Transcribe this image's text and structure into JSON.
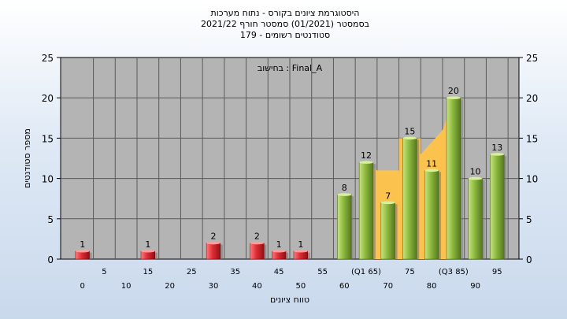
{
  "chart_data": {
    "type": "bar",
    "title_lines": [
      "היסטוגרמת ציונים בקורס - נתוח מערכות",
      "בסמסטר  (01/2021)  סמסטר חורף 2021/22",
      "סטודנטים רשומים - 179"
    ],
    "xlabel": "טווח ציונים",
    "ylabel": "מספר סטודנטים",
    "annotation": "בחישוב : Final_A",
    "ylim": [
      0,
      25
    ],
    "y_ticks": [
      0,
      5,
      10,
      15,
      20,
      25
    ],
    "x_range": [
      -5,
      100
    ],
    "x_tick_labels": [
      {
        "x": 0,
        "label": "0",
        "row": 2
      },
      {
        "x": 5,
        "label": "5",
        "row": 1
      },
      {
        "x": 10,
        "label": "10",
        "row": 2
      },
      {
        "x": 15,
        "label": "15",
        "row": 1
      },
      {
        "x": 20,
        "label": "20",
        "row": 2
      },
      {
        "x": 25,
        "label": "25",
        "row": 1
      },
      {
        "x": 30,
        "label": "30",
        "row": 2
      },
      {
        "x": 35,
        "label": "35",
        "row": 1
      },
      {
        "x": 40,
        "label": "40",
        "row": 2
      },
      {
        "x": 45,
        "label": "45",
        "row": 1
      },
      {
        "x": 50,
        "label": "50",
        "row": 2
      },
      {
        "x": 55,
        "label": "55",
        "row": 1
      },
      {
        "x": 60,
        "label": "60",
        "row": 2
      },
      {
        "x": 65,
        "label": "(Q1 65)",
        "row": 1
      },
      {
        "x": 70,
        "label": "70",
        "row": 2
      },
      {
        "x": 75,
        "label": "75",
        "row": 1
      },
      {
        "x": 80,
        "label": "80",
        "row": 2
      },
      {
        "x": 85,
        "label": "(Q3 85)",
        "row": 1
      },
      {
        "x": 90,
        "label": "90",
        "row": 2
      },
      {
        "x": 95,
        "label": "95",
        "row": 1
      }
    ],
    "bars": [
      {
        "x": 0,
        "value": 1,
        "group": "fail"
      },
      {
        "x": 15,
        "value": 1,
        "group": "fail"
      },
      {
        "x": 30,
        "value": 2,
        "group": "fail"
      },
      {
        "x": 40,
        "value": 2,
        "group": "fail"
      },
      {
        "x": 45,
        "value": 1,
        "group": "fail"
      },
      {
        "x": 50,
        "value": 1,
        "group": "fail"
      },
      {
        "x": 60,
        "value": 8,
        "group": "pass"
      },
      {
        "x": 65,
        "value": 12,
        "group": "pass"
      },
      {
        "x": 70,
        "value": 7,
        "group": "pass"
      },
      {
        "x": 75,
        "value": 15,
        "group": "pass"
      },
      {
        "x": 80,
        "value": 11,
        "group": "pass"
      },
      {
        "x": 85,
        "value": 20,
        "group": "pass"
      },
      {
        "x": 90,
        "value": 10,
        "group": "pass"
      },
      {
        "x": 95,
        "value": 13,
        "group": "pass"
      }
    ],
    "quartile_band": [
      {
        "x": 65,
        "y": 12
      },
      {
        "x": 67.5,
        "y": 11
      },
      {
        "x": 72.5,
        "y": 11
      },
      {
        "x": 72.5,
        "y": 15
      },
      {
        "x": 77.5,
        "y": 15
      },
      {
        "x": 77.5,
        "y": 13
      },
      {
        "x": 82.5,
        "y": 16
      },
      {
        "x": 85,
        "y": 20
      }
    ],
    "grid": true,
    "colors": {
      "plot_bg": "#b4b4b4",
      "grid": "#5a5a5a",
      "fail_bar": "#d93035",
      "pass_bar": "#8ab63c",
      "band": "#fcc24e",
      "axis": "#000000"
    }
  }
}
